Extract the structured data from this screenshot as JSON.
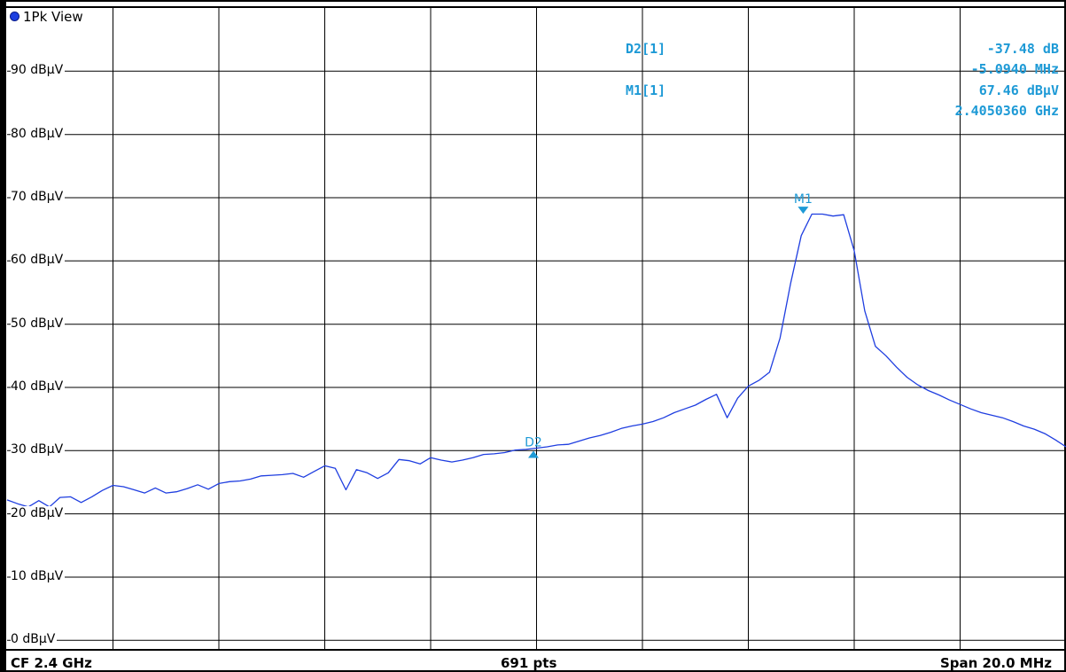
{
  "window": {
    "title": "1Pk View"
  },
  "readouts": {
    "delta_label": "D2[1]",
    "delta_level": "-37.48 dB",
    "delta_freq": "-5.0940 MHz",
    "marker_label": "M1[1]",
    "marker_level": "67.46 dBµV",
    "marker_freq": "2.4050360 GHz"
  },
  "footer": {
    "center_freq": "CF 2.4 GHz",
    "points": "691 pts",
    "span": "Span 20.0 MHz"
  },
  "colors": {
    "trace": "#1f3ee0",
    "marker": "#1e9ad6",
    "grid": "#000000"
  },
  "chart_data": {
    "type": "line",
    "title": "1Pk View",
    "xlabel": "",
    "ylabel": "",
    "xlim": [
      2.39,
      2.41
    ],
    "ylim": [
      -1.5,
      100
    ],
    "x_unit": "GHz",
    "y_unit": "dBµV",
    "yticks": [
      0,
      10,
      20,
      30,
      40,
      50,
      60,
      70,
      80,
      90
    ],
    "ytick_labels": [
      "0 dBµV",
      "10 dBµV",
      "20 dBµV",
      "30 dBµV",
      "40 dBµV",
      "50 dBµV",
      "60 dBµV",
      "70 dBµV",
      "80 dBµV",
      "90 dBµV"
    ],
    "x_divisions": 10,
    "grid": true,
    "series": [
      {
        "x": [
          2.39,
          2.3902,
          2.3904,
          2.3906,
          2.3908,
          2.391,
          2.3912,
          2.3914,
          2.3916,
          2.3918,
          2.392,
          2.3922,
          2.3924,
          2.3926,
          2.3928,
          2.393,
          2.3932,
          2.3934,
          2.3936,
          2.3938,
          2.394,
          2.3942,
          2.3944,
          2.3946,
          2.3948,
          2.395,
          2.3952,
          2.3954,
          2.3956,
          2.3958,
          2.396,
          2.3962,
          2.3964,
          2.3966,
          2.3968,
          2.397,
          2.3972,
          2.3974,
          2.3976,
          2.3978,
          2.398,
          2.3982,
          2.3984,
          2.3986,
          2.3988,
          2.399,
          2.3992,
          2.3994,
          2.3996,
          2.3998,
          2.4,
          2.4002,
          2.4004,
          2.4006,
          2.4008,
          2.401,
          2.4012,
          2.4014,
          2.4016,
          2.4018,
          2.402,
          2.4022,
          2.4024,
          2.4026,
          2.4028,
          2.403,
          2.4032,
          2.4034,
          2.4036,
          2.4038,
          2.404,
          2.4042,
          2.4044,
          2.4046,
          2.4048,
          2.405,
          2.4052,
          2.4054,
          2.4056,
          2.4058,
          2.406,
          2.4062,
          2.4064,
          2.4066,
          2.4068,
          2.407,
          2.4072,
          2.4074,
          2.4076,
          2.4078,
          2.408,
          2.4082,
          2.4084,
          2.4086,
          2.4088,
          2.409,
          2.4092,
          2.4094,
          2.4096,
          2.4098,
          2.41
        ],
        "y": [
          22.2,
          21.6,
          21.1,
          22.1,
          21.1,
          22.6,
          22.7,
          21.8,
          22.7,
          23.7,
          24.5,
          24.3,
          23.8,
          23.3,
          24.1,
          23.3,
          23.5,
          24.0,
          24.6,
          23.9,
          24.8,
          25.1,
          25.2,
          25.5,
          26.0,
          26.1,
          26.2,
          26.4,
          25.8,
          26.7,
          27.6,
          27.2,
          23.8,
          27.0,
          26.5,
          25.6,
          26.5,
          28.6,
          28.4,
          27.9,
          28.9,
          28.5,
          28.2,
          28.5,
          28.9,
          29.4,
          29.5,
          29.7,
          30.1,
          30.2,
          30.4,
          30.6,
          30.9,
          31.0,
          31.5,
          32.0,
          32.4,
          32.9,
          33.5,
          33.9,
          34.2,
          34.6,
          35.2,
          36.0,
          36.6,
          37.2,
          38.1,
          38.9,
          35.2,
          38.3,
          40.2,
          41.1,
          42.4,
          47.8,
          56.5,
          64.0,
          67.4,
          67.4,
          67.1,
          67.3,
          61.6,
          52.1,
          46.5,
          45.0,
          43.2,
          41.6,
          40.4,
          39.5,
          38.8,
          38.0,
          37.3,
          36.6,
          36.0,
          35.6,
          35.2,
          34.6,
          33.9,
          33.4,
          32.7,
          31.7,
          30.6
        ]
      }
    ],
    "markers": [
      {
        "name": "M1",
        "x": 2.405036,
        "y": 67.46,
        "direction": "down"
      },
      {
        "name": "D2",
        "x": 2.399942,
        "y": 29.98,
        "direction": "up"
      }
    ]
  }
}
